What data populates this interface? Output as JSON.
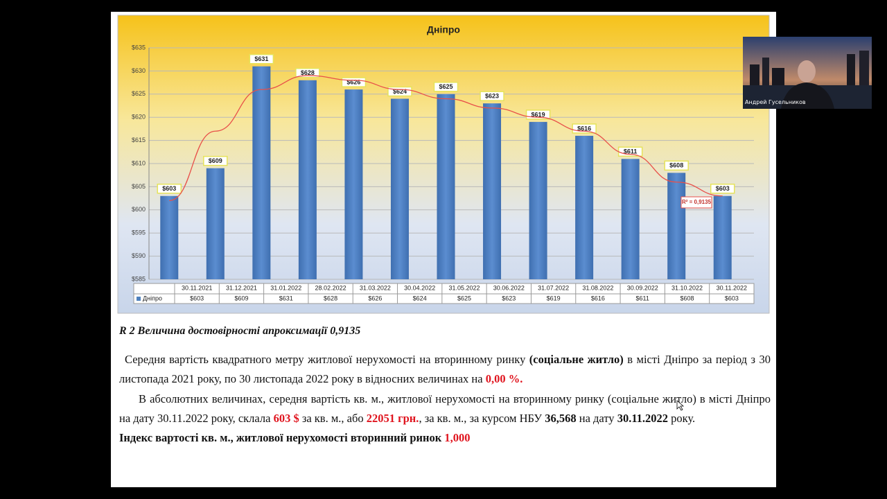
{
  "chart_data": {
    "type": "bar",
    "title": "Дніпро",
    "categories": [
      "30.11.2021",
      "31.12.2021",
      "31.01.2022",
      "28.02.2022",
      "31.03.2022",
      "30.04.2022",
      "31.05.2022",
      "30.06.2022",
      "31.07.2022",
      "31.08.2022",
      "30.09.2022",
      "31.10.2022",
      "30.11.2022"
    ],
    "series": [
      {
        "name": "Дніпро",
        "color": "#4f81bd",
        "values": [
          603,
          609,
          631,
          628,
          626,
          624,
          625,
          623,
          619,
          616,
          611,
          608,
          603
        ],
        "value_labels": [
          "$603",
          "$609",
          "$631",
          "$628",
          "$626",
          "$624",
          "$625",
          "$623",
          "$619",
          "$616",
          "$611",
          "$608",
          "$603"
        ]
      }
    ],
    "trendline": {
      "color": "#e8504a",
      "values": [
        602,
        617,
        626,
        629,
        628,
        626,
        624,
        622,
        620,
        617,
        612,
        606,
        603
      ],
      "annotation": "R² = 0,9135"
    },
    "ylim": [
      585,
      635
    ],
    "yticks": [
      {
        "value": 585,
        "label": "$585"
      },
      {
        "value": 590,
        "label": "$590"
      },
      {
        "value": 595,
        "label": "$595"
      },
      {
        "value": 600,
        "label": "$600"
      },
      {
        "value": 605,
        "label": "$605"
      },
      {
        "value": 610,
        "label": "$610"
      },
      {
        "value": 615,
        "label": "$615"
      },
      {
        "value": 620,
        "label": "$620"
      },
      {
        "value": 625,
        "label": "$625"
      },
      {
        "value": 630,
        "label": "$630"
      },
      {
        "value": 635,
        "label": "$635"
      }
    ],
    "grid": true
  },
  "document": {
    "heading": "R 2 Величина достовірності апроксимації 0,9135",
    "paragraphs": [
      [
        "Середня вартість квадратного метру житлової нерухомості на вторинному ринку ",
        "(соціальне житло)",
        " в місті Дніпро за період з 30 листопада 2021 року, по 30 листопада 2022 року  в відносних величинах на ",
        "0,00 %."
      ],
      [
        "В абсолютних величинах, середня вартість кв. м., житлової нерухомості на вторинному ринку (соціальне житло) в місті Дніпро на дату 30.11.2022 року, склала ",
        "603 $",
        " за кв. м., або ",
        "22051 грн.",
        ", за кв. м., за курсом НБУ ",
        "36,568",
        " на дату ",
        "30.11.2022",
        " року."
      ],
      [
        "Індекс вартості кв. м., житлової нерухомості вторинний ринок ",
        "1,000"
      ]
    ]
  },
  "video": {
    "participant": "Андрей Гусельников"
  }
}
